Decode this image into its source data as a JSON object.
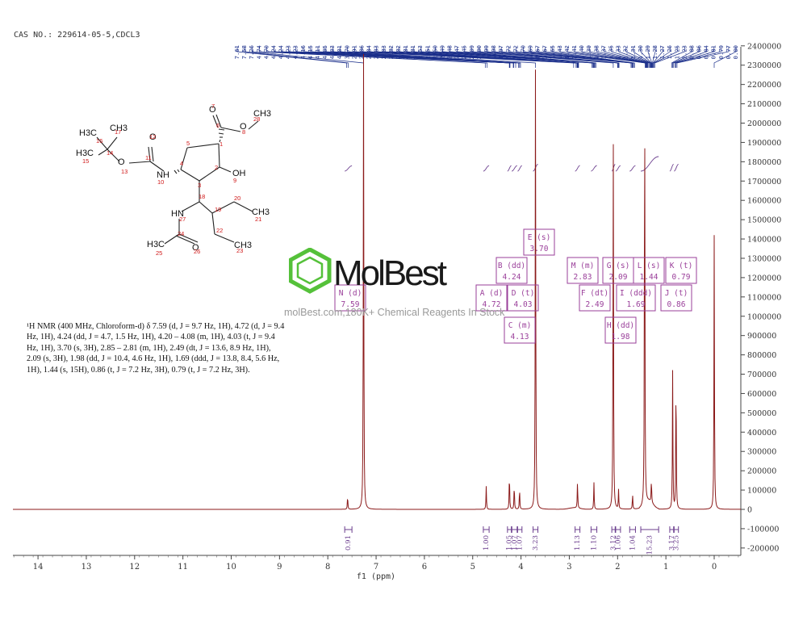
{
  "header": {
    "cas_label": "CAS NO.: 229614-05-5,CDCL3"
  },
  "nmr_text": "¹H NMR (400 MHz, Chloroform-d) δ 7.59 (d, J = 9.7 Hz, 1H), 4.72 (d, J = 9.4 Hz, 1H), 4.24 (dd, J = 4.7, 1.5 Hz, 1H), 4.20 – 4.08 (m, 1H), 4.03 (t, J = 9.4 Hz, 1H), 3.70 (s, 3H), 2.85 – 2.81 (m, 1H), 2.49 (dt, J = 13.6, 8.9 Hz, 1H), 2.09 (s, 3H), 1.98 (dd, J = 10.4, 4.6 Hz, 1H), 1.69 (ddd, J = 13.8, 8.4, 5.6 Hz, 1H), 1.44 (s, 15H), 0.86 (t, J = 7.2 Hz, 3H), 0.79 (t, J = 7.2 Hz, 3H).",
  "watermark": {
    "brand": "MolBest",
    "tagline": "molBest.com,180K+ Chemical Reagents In Stock"
  },
  "colors": {
    "spectrum": "#8b1a1a",
    "peak_labels": "#9a3f9a",
    "integrals": "#6b3e8e",
    "watermark": "#7a7a7a",
    "logo": "#55c13a",
    "top_labels": "#1a2e8a"
  },
  "chart_data": {
    "type": "line",
    "xlabel": "f1 (ppm)",
    "xlim": [
      14.6,
      -0.5
    ],
    "x_ticks": [
      "14",
      "13",
      "12",
      "11",
      "10",
      "9",
      "8",
      "7",
      "6",
      "5",
      "4",
      "3",
      "2",
      "1",
      "0"
    ],
    "ylim": [
      -200000,
      2400000
    ],
    "y_ticks": [
      "-200000",
      "-100000",
      "0",
      "100000",
      "200000",
      "300000",
      "400000",
      "500000",
      "600000",
      "700000",
      "800000",
      "900000",
      "1000000",
      "1100000",
      "1200000",
      "1300000",
      "1400000",
      "1500000",
      "1600000",
      "1700000",
      "1800000",
      "1900000",
      "2000000",
      "2100000",
      "2200000",
      "2300000",
      "2400000"
    ],
    "peaks": [
      {
        "ppm": 7.59,
        "height": 70000
      },
      {
        "ppm": 7.26,
        "height": 2360000
      },
      {
        "ppm": 4.72,
        "height": 120000
      },
      {
        "ppm": 4.24,
        "height": 190000
      },
      {
        "ppm": 4.14,
        "height": 130000
      },
      {
        "ppm": 4.03,
        "height": 110000
      },
      {
        "ppm": 3.7,
        "height": 2330000
      },
      {
        "ppm": 2.83,
        "height": 140000
      },
      {
        "ppm": 2.49,
        "height": 140000
      },
      {
        "ppm": 2.09,
        "height": 2000000
      },
      {
        "ppm": 1.98,
        "height": 100000
      },
      {
        "ppm": 1.69,
        "height": 80000
      },
      {
        "ppm": 1.44,
        "height": 2330000
      },
      {
        "ppm": 1.3,
        "height": 120000
      },
      {
        "ppm": 0.86,
        "height": 720000
      },
      {
        "ppm": 0.79,
        "height": 730000
      },
      {
        "ppm": 0.0,
        "height": 1420000
      }
    ],
    "peak_labels": [
      {
        "id": "A (d)",
        "value": "4.72"
      },
      {
        "id": "B (dd)",
        "value": "4.24"
      },
      {
        "id": "C (m)",
        "value": "4.13"
      },
      {
        "id": "D (t)",
        "value": "4.03"
      },
      {
        "id": "E (s)",
        "value": "3.70"
      },
      {
        "id": "F (dt)",
        "value": "2.49"
      },
      {
        "id": "G (s)",
        "value": "2.09"
      },
      {
        "id": "H (dd)",
        "value": "1.98"
      },
      {
        "id": "I (ddd)",
        "value": "1.69"
      },
      {
        "id": "J (t)",
        "value": "0.86"
      },
      {
        "id": "K (t)",
        "value": "0.79"
      },
      {
        "id": "L (s)",
        "value": "1.44"
      },
      {
        "id": "M (m)",
        "value": "2.83"
      },
      {
        "id": "N (d)",
        "value": "7.59"
      }
    ],
    "integrals": [
      {
        "from": 7.65,
        "to": 7.5,
        "value": "0.91"
      },
      {
        "from": 4.78,
        "to": 4.66,
        "value": "1.00"
      },
      {
        "from": 4.28,
        "to": 4.2,
        "value": "1.05"
      },
      {
        "from": 4.19,
        "to": 4.08,
        "value": "1.07"
      },
      {
        "from": 4.07,
        "to": 3.98,
        "value": "1.07"
      },
      {
        "from": 3.75,
        "to": 3.65,
        "value": "3.23"
      },
      {
        "from": 2.88,
        "to": 2.78,
        "value": "1.13"
      },
      {
        "from": 2.55,
        "to": 2.43,
        "value": "1.10"
      },
      {
        "from": 2.12,
        "to": 2.05,
        "value": "3.12"
      },
      {
        "from": 2.04,
        "to": 1.94,
        "value": "1.06"
      },
      {
        "from": 1.75,
        "to": 1.63,
        "value": "1.04"
      },
      {
        "from": 1.52,
        "to": 1.15,
        "value": "15.23"
      },
      {
        "from": 0.92,
        "to": 0.84,
        "value": "3.17"
      },
      {
        "from": 0.83,
        "to": 0.74,
        "value": "3.25"
      }
    ],
    "top_peak_labels": [
      "7.61",
      "7.58",
      "7.26",
      "4.74",
      "4.70",
      "4.24",
      "4.24",
      "4.23",
      "4.23",
      "4.16",
      "4.15",
      "4.11",
      "4.05",
      "4.03",
      "4.01",
      "3.70",
      "2.91",
      "2.86",
      "2.84",
      "2.83",
      "2.83",
      "2.82",
      "2.82",
      "2.81",
      "2.81",
      "2.53",
      "2.51",
      "2.50",
      "2.49",
      "2.48",
      "2.47",
      "2.45",
      "2.09",
      "2.00",
      "1.99",
      "1.98",
      "1.97",
      "1.72",
      "1.72",
      "1.70",
      "1.69",
      "1.67",
      "1.67",
      "1.65",
      "1.43",
      "1.42",
      "1.41",
      "1.40",
      "1.39",
      "1.38",
      "1.37",
      "1.35",
      "1.33",
      "1.32",
      "1.31",
      "1.30",
      "1.29",
      "1.28",
      "1.27",
      "1.26",
      "1.25",
      "1.23",
      "0.88",
      "0.86",
      "0.84",
      "0.81",
      "0.79",
      "0.77",
      "0.00"
    ]
  },
  "molecule": {
    "atoms": [
      {
        "label": "C",
        "num": "1"
      },
      {
        "label": "C",
        "num": "2"
      },
      {
        "label": "C",
        "num": "3"
      },
      {
        "label": "C",
        "num": "4"
      },
      {
        "label": "C",
        "num": "5"
      },
      {
        "label": "C",
        "num": "6"
      },
      {
        "label": "O",
        "num": "7"
      },
      {
        "label": "O",
        "num": "8"
      },
      {
        "label": "OH",
        "num": "9"
      },
      {
        "label": "NH",
        "num": "10"
      },
      {
        "label": "C",
        "num": "11"
      },
      {
        "label": "O",
        "num": "12"
      },
      {
        "label": "O",
        "num": "13"
      },
      {
        "label": "C",
        "num": "14"
      },
      {
        "label": "H3C",
        "num": "15"
      },
      {
        "label": "H3C",
        "num": "16"
      },
      {
        "label": "CH3",
        "num": "17"
      },
      {
        "label": "C",
        "num": "18"
      },
      {
        "label": "C",
        "num": "19"
      },
      {
        "label": "C",
        "num": "20"
      },
      {
        "label": "CH3",
        "num": "21"
      },
      {
        "label": "C",
        "num": "22"
      },
      {
        "label": "CH3",
        "num": "23"
      },
      {
        "label": "C",
        "num": "24"
      },
      {
        "label": "H3C",
        "num": "25"
      },
      {
        "label": "O",
        "num": "26"
      },
      {
        "label": "HN",
        "num": "27"
      },
      {
        "label": "CH3",
        "num": "28"
      }
    ]
  }
}
